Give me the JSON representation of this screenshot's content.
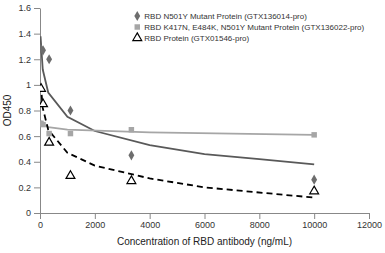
{
  "chart_data": {
    "type": "scatter",
    "x_label": "Concentration of RBD antibody (ng/mL)",
    "y_label": "OD450",
    "xlim": [
      0,
      12000
    ],
    "xticks": [
      0,
      2000,
      4000,
      6000,
      8000,
      10000,
      12000
    ],
    "ylim": [
      0,
      1.6
    ],
    "yticks": [
      0,
      0.2,
      0.4,
      0.6,
      0.8,
      1,
      1.2,
      1.4,
      1.6
    ],
    "grid": false,
    "legend": "upper right",
    "series": [
      {
        "name": "RBD N501Y Mutant Protein (GTX136014-pro)",
        "type": "scatter",
        "marker": "diamond",
        "color": "#6d6d6d",
        "x": [
          37,
          111,
          333,
          1111,
          3333,
          10000
        ],
        "values": [
          1.28,
          1.27,
          1.2,
          0.8,
          0.45,
          0.26
        ]
      },
      {
        "name": "RBD K417N, E484K, N501Y Mutant Protein (GTX136022-pro)",
        "type": "scatter",
        "marker": "square",
        "color": "#a6a6a6",
        "x": [
          37,
          111,
          333,
          1111,
          3333,
          10000
        ],
        "values": [
          0.7,
          0.69,
          0.62,
          0.62,
          0.65,
          0.61
        ]
      },
      {
        "name": "RBD Protein (GTX01546-pro)",
        "type": "scatter",
        "marker": "triangle",
        "color": "#000000",
        "x": [
          37,
          111,
          333,
          1111,
          3333,
          10000
        ],
        "values": [
          0.97,
          0.85,
          0.55,
          0.29,
          0.25,
          0.17
        ]
      },
      {
        "type": "line",
        "line_style": "solid",
        "color": "#595959",
        "x": [
          20,
          100,
          300,
          1000,
          2000,
          4000,
          6000,
          8000,
          10000
        ],
        "values": [
          1.38,
          1.12,
          0.94,
          0.75,
          0.64,
          0.53,
          0.46,
          0.42,
          0.38
        ]
      },
      {
        "type": "line",
        "line_style": "solid",
        "color": "#a6a6a6",
        "x": [
          20,
          100,
          300,
          1000,
          4000,
          10000
        ],
        "values": [
          0.72,
          0.69,
          0.67,
          0.65,
          0.63,
          0.61
        ]
      },
      {
        "type": "line",
        "line_style": "dashed",
        "color": "#000000",
        "x": [
          30,
          100,
          300,
          1000,
          2000,
          4000,
          6000,
          10000
        ],
        "values": [
          1.0,
          0.82,
          0.65,
          0.47,
          0.37,
          0.27,
          0.2,
          0.12
        ]
      }
    ]
  }
}
